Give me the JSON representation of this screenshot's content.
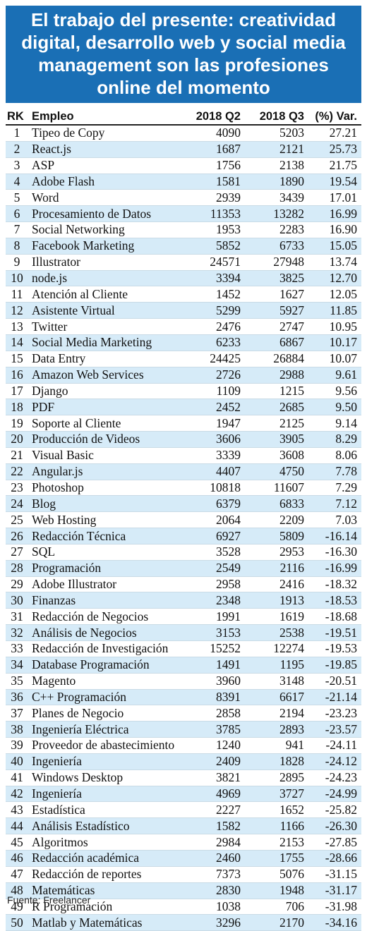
{
  "title": "El trabajo del presente: creatividad digital, desarrollo web y social media management son las profesiones online del momento",
  "source": "Fuente: Freelancer",
  "colors": {
    "title_bg": "#1a6fb5",
    "row_alt": "#d6ebf8"
  },
  "chart_data": {
    "type": "table",
    "title": "El trabajo del presente: creatividad digital, desarrollo web y social media management son las profesiones online del momento",
    "columns": [
      "RK",
      "Empleo",
      "2018 Q2",
      "2018 Q3",
      "(%) Var."
    ],
    "rows": [
      [
        "1",
        "Tipeo de Copy",
        "4090",
        "5203",
        "27.21"
      ],
      [
        "2",
        "React.js",
        "1687",
        "2121",
        "25.73"
      ],
      [
        "3",
        "ASP",
        "1756",
        "2138",
        "21.75"
      ],
      [
        "4",
        "Adobe Flash",
        "1581",
        "1890",
        "19.54"
      ],
      [
        "5",
        "Word",
        "2939",
        "3439",
        "17.01"
      ],
      [
        "6",
        "Procesamiento de Datos",
        "11353",
        "13282",
        "16.99"
      ],
      [
        "7",
        "Social Networking",
        "1953",
        "2283",
        "16.90"
      ],
      [
        "8",
        "Facebook Marketing",
        "5852",
        "6733",
        "15.05"
      ],
      [
        "9",
        "Illustrator",
        "24571",
        "27948",
        "13.74"
      ],
      [
        "10",
        "node.js",
        "3394",
        "3825",
        "12.70"
      ],
      [
        "11",
        "Atención al Cliente",
        "1452",
        "1627",
        "12.05"
      ],
      [
        "12",
        "Asistente Virtual",
        "5299",
        "5927",
        "11.85"
      ],
      [
        "13",
        "Twitter",
        "2476",
        "2747",
        "10.95"
      ],
      [
        "14",
        "Social Media Marketing",
        "6233",
        "6867",
        "10.17"
      ],
      [
        "15",
        "Data Entry",
        "24425",
        "26884",
        "10.07"
      ],
      [
        "16",
        "Amazon Web Services",
        "2726",
        "2988",
        "9.61"
      ],
      [
        "17",
        "Django",
        "1109",
        "1215",
        "9.56"
      ],
      [
        "18",
        "PDF",
        "2452",
        "2685",
        "9.50"
      ],
      [
        "19",
        "Soporte al Cliente",
        "1947",
        "2125",
        "9.14"
      ],
      [
        "20",
        "Producción de Videos",
        "3606",
        "3905",
        "8.29"
      ],
      [
        "21",
        "Visual Basic",
        "3339",
        "3608",
        "8.06"
      ],
      [
        "22",
        "Angular.js",
        "4407",
        "4750",
        "7.78"
      ],
      [
        "23",
        "Photoshop",
        "10818",
        "11607",
        "7.29"
      ],
      [
        "24",
        "Blog",
        "6379",
        "6833",
        "7.12"
      ],
      [
        "25",
        "Web Hosting",
        "2064",
        "2209",
        "7.03"
      ],
      [
        "26",
        "Redacción Técnica",
        "6927",
        "5809",
        "-16.14"
      ],
      [
        "27",
        "SQL",
        "3528",
        "2953",
        "-16.30"
      ],
      [
        "28",
        "Programación",
        "2549",
        "2116",
        "-16.99"
      ],
      [
        "29",
        "Adobe Illustrator",
        "2958",
        "2416",
        "-18.32"
      ],
      [
        "30",
        "Finanzas",
        "2348",
        "1913",
        "-18.53"
      ],
      [
        "31",
        "Redacción de Negocios",
        "1991",
        "1619",
        "-18.68"
      ],
      [
        "32",
        "Análisis de Negocios",
        "3153",
        "2538",
        "-19.51"
      ],
      [
        "33",
        "Redacción de Investigación",
        "15252",
        "12274",
        "-19.53"
      ],
      [
        "34",
        "Database Programación",
        "1491",
        "1195",
        "-19.85"
      ],
      [
        "35",
        "Magento",
        "3960",
        "3148",
        "-20.51"
      ],
      [
        "36",
        "C++ Programación",
        "8391",
        "6617",
        "-21.14"
      ],
      [
        "37",
        "Planes de Negocio",
        "2858",
        "2194",
        "-23.23"
      ],
      [
        "38",
        "Ingeniería Eléctrica",
        "3785",
        "2893",
        "-23.57"
      ],
      [
        "39",
        "Proveedor de abastecimiento",
        "1240",
        "941",
        "-24.11"
      ],
      [
        "40",
        "Ingeniería",
        "2409",
        "1828",
        "-24.12"
      ],
      [
        "41",
        "Windows Desktop",
        "3821",
        "2895",
        "-24.23"
      ],
      [
        "42",
        "Ingeniería",
        "4969",
        "3727",
        "-24.99"
      ],
      [
        "43",
        "Estadística",
        "2227",
        "1652",
        "-25.82"
      ],
      [
        "44",
        "Análisis Estadístico",
        "1582",
        "1166",
        "-26.30"
      ],
      [
        "45",
        "Algoritmos",
        "2984",
        "2153",
        "-27.85"
      ],
      [
        "46",
        "Redacción académica",
        "2460",
        "1755",
        "-28.66"
      ],
      [
        "47",
        "Redacción de reportes",
        "7373",
        "5076",
        "-31.15"
      ],
      [
        "48",
        "Matemáticas",
        "2830",
        "1948",
        "-31.17"
      ],
      [
        "49",
        "R Programación",
        "1038",
        "706",
        "-31.98"
      ],
      [
        "50",
        "Matlab y Matemáticas",
        "3296",
        "2170",
        "-34.16"
      ]
    ]
  }
}
